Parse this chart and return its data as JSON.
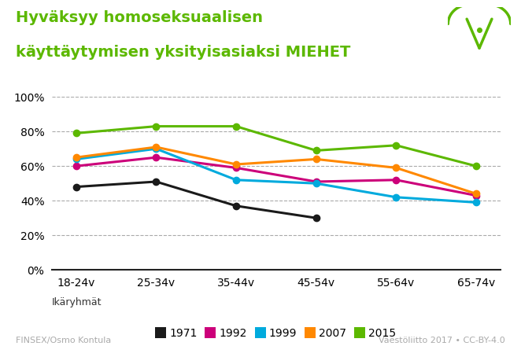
{
  "title_line1": "Hyväksyy homoseksuaalisen",
  "title_line2": "käyttäytymisen yksityisasiaksi MIEHET",
  "title_color": "#5cb800",
  "background_color": "#ffffff",
  "xlabel_text": "Ikäryhmät",
  "categories": [
    "18-24v",
    "25-34v",
    "35-44v",
    "45-54v",
    "55-64v",
    "65-74v"
  ],
  "series": [
    {
      "label": "1971",
      "color": "#1a1a1a",
      "values": [
        48,
        51,
        37,
        30,
        null,
        null
      ]
    },
    {
      "label": "1992",
      "color": "#cc007a",
      "values": [
        60,
        65,
        59,
        51,
        52,
        43
      ]
    },
    {
      "label": "1999",
      "color": "#00aadd",
      "values": [
        64,
        70,
        52,
        50,
        42,
        39
      ]
    },
    {
      "label": "2007",
      "color": "#ff8800",
      "values": [
        65,
        71,
        61,
        64,
        59,
        44
      ]
    },
    {
      "label": "2015",
      "color": "#5cb800",
      "values": [
        79,
        83,
        83,
        69,
        72,
        60
      ]
    }
  ],
  "ylim": [
    0,
    100
  ],
  "yticks": [
    0,
    20,
    40,
    60,
    80,
    100
  ],
  "ytick_labels": [
    "0%",
    "20%",
    "40%",
    "60%",
    "80%",
    "100%"
  ],
  "grid_color": "#aaaaaa",
  "grid_linestyle": "--",
  "footer_left": "FINSEX/Osmo Kontula",
  "footer_right": "Väestöliitto 2017 • CC-BY-4.0",
  "footer_color": "#aaaaaa",
  "marker": "o",
  "marker_size": 6,
  "line_width": 2.2
}
